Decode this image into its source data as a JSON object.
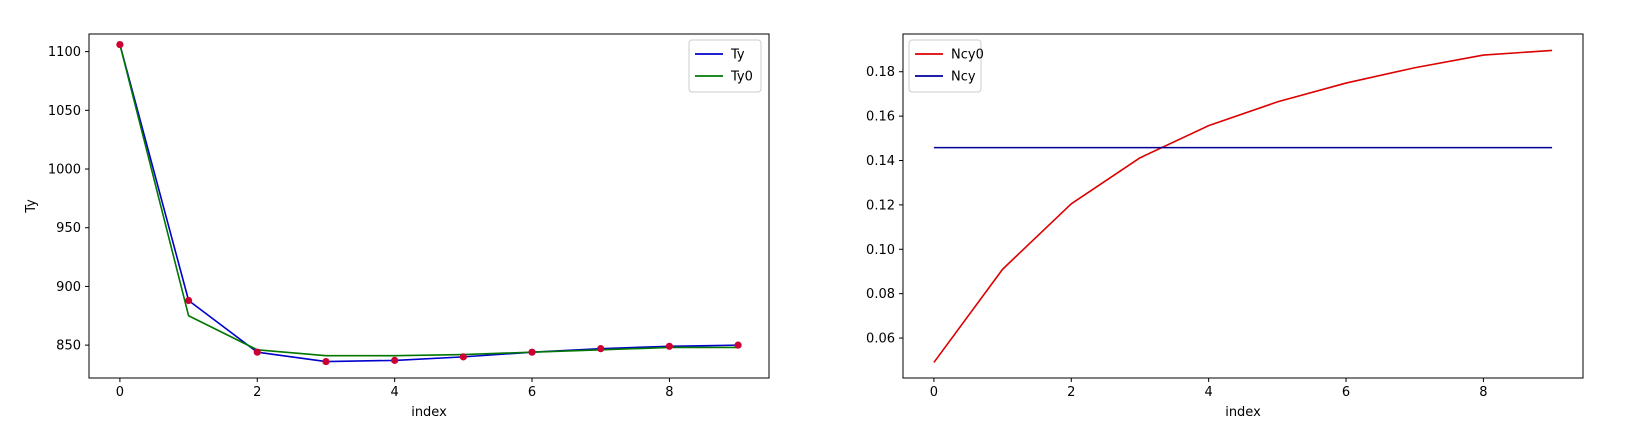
{
  "chart_data": [
    {
      "type": "line",
      "title": "",
      "xlabel": "index",
      "ylabel": "Ty",
      "xlim": [
        -0.45,
        9.45
      ],
      "ylim": [
        822,
        1115
      ],
      "xticks": [
        0,
        2,
        4,
        6,
        8
      ],
      "yticks": [
        850,
        900,
        950,
        1000,
        1050,
        1100
      ],
      "grid": false,
      "legend_position": "top-right",
      "x": [
        0,
        1,
        2,
        3,
        4,
        5,
        6,
        7,
        8,
        9
      ],
      "series": [
        {
          "name": "Ty",
          "color": "#0000cc",
          "values": [
            1106,
            888,
            844,
            836,
            837,
            840,
            844,
            847,
            849,
            850
          ]
        },
        {
          "name": "Ty0",
          "color": "#007700",
          "values": [
            1106,
            875,
            846,
            841,
            841,
            842,
            844,
            846,
            848,
            848
          ]
        }
      ],
      "points": {
        "color": "#cc0033",
        "values": [
          1106,
          888,
          844,
          836,
          837,
          840,
          844,
          847,
          849,
          850
        ]
      }
    },
    {
      "type": "line",
      "title": "",
      "xlabel": "index",
      "ylabel": "",
      "xlim": [
        -0.45,
        9.45
      ],
      "ylim": [
        0.042,
        0.197
      ],
      "xticks": [
        0,
        2,
        4,
        6,
        8
      ],
      "yticks": [
        0.06,
        0.08,
        0.1,
        0.12,
        0.14,
        0.16,
        0.18
      ],
      "ytick_decimals": 2,
      "grid": false,
      "legend_position": "top-left",
      "x": [
        0,
        1,
        2,
        3,
        4,
        5,
        6,
        7,
        8,
        9
      ],
      "series": [
        {
          "name": "Ncy0",
          "color": "#dd0000",
          "values": [
            0.049,
            0.091,
            0.1205,
            0.1412,
            0.1557,
            0.1664,
            0.1749,
            0.1818,
            0.1875,
            0.1896
          ]
        },
        {
          "name": "Ncy",
          "color": "#000099",
          "values": [
            0.1458,
            0.1458,
            0.1458,
            0.1458,
            0.1458,
            0.1458,
            0.1458,
            0.1458,
            0.1458,
            0.1458
          ]
        }
      ]
    }
  ]
}
